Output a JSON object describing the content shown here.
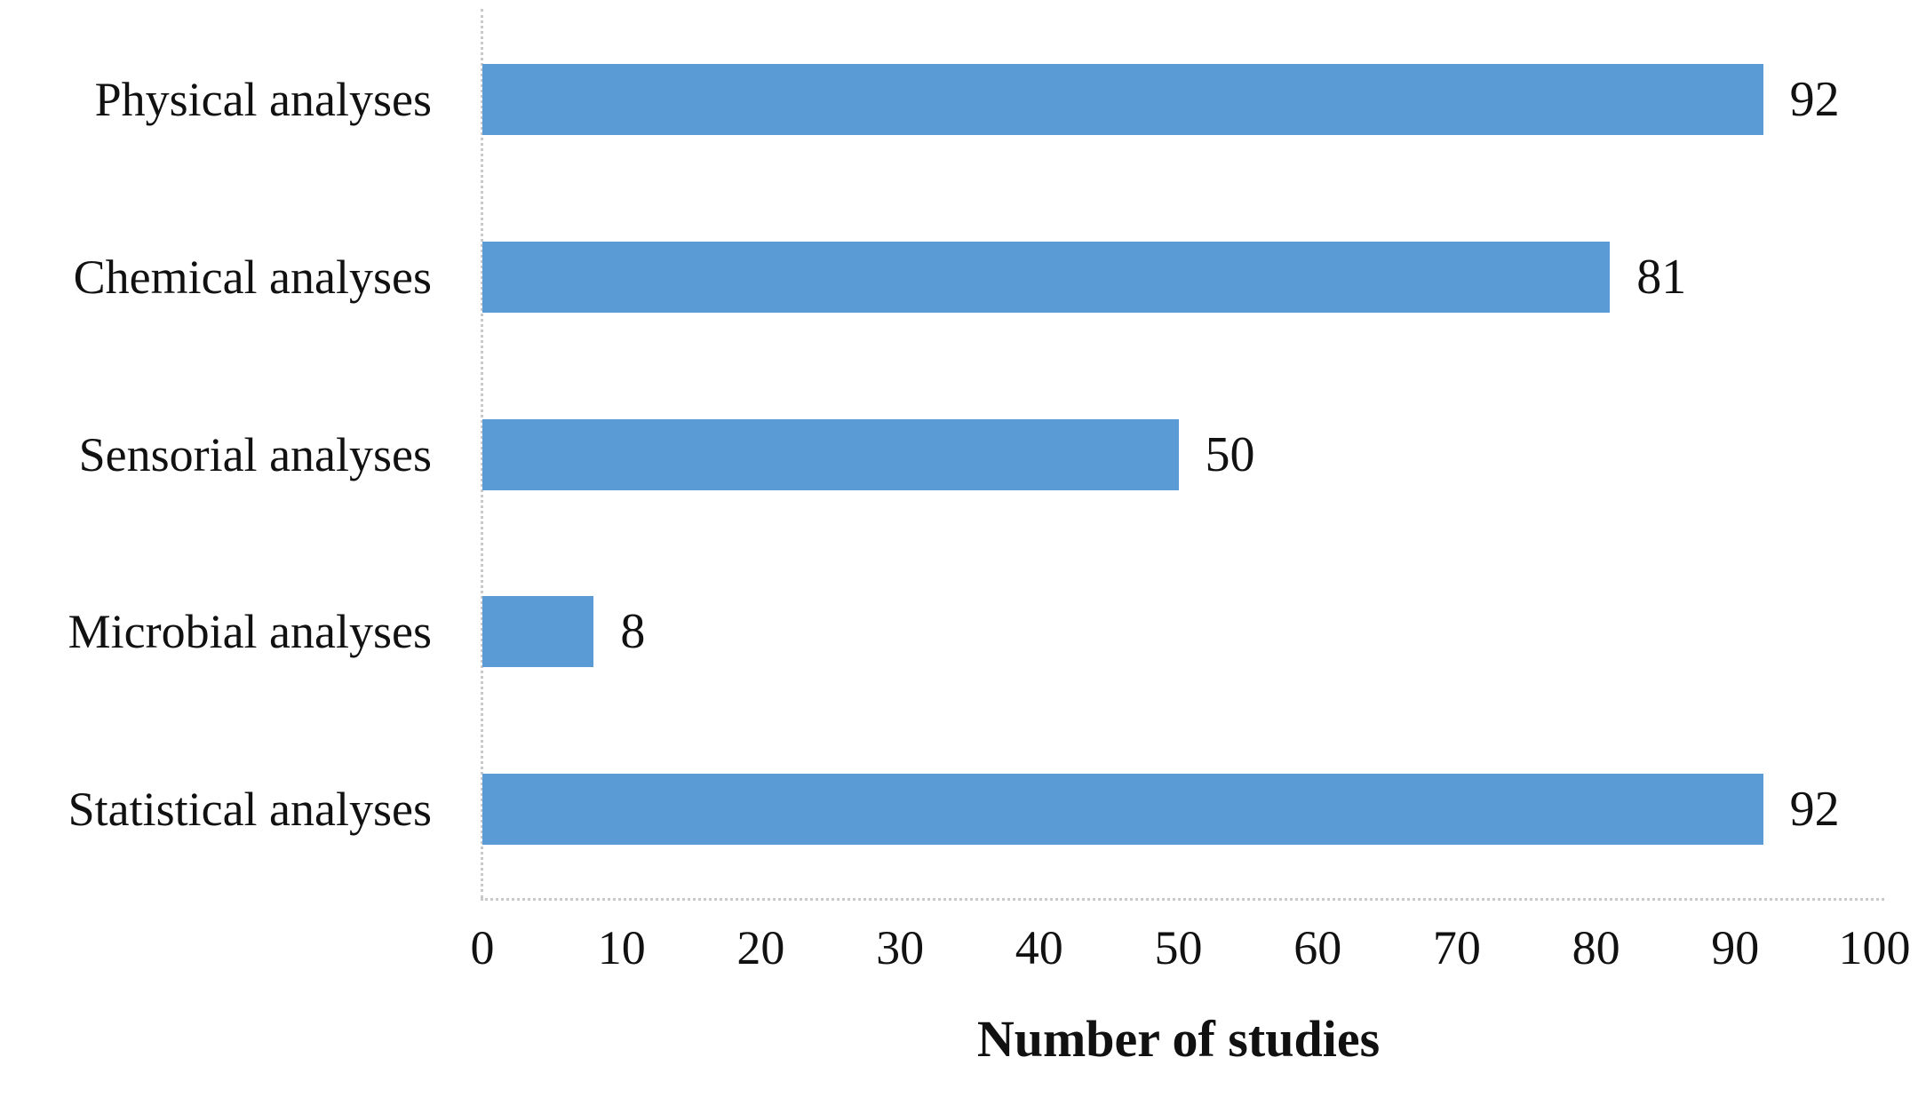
{
  "chart_data": {
    "type": "bar",
    "orientation": "horizontal",
    "title": "",
    "xlabel": "Number of studies",
    "ylabel": "",
    "categories": [
      "Physical analyses",
      "Chemical analyses",
      "Sensorial analyses",
      "Microbial analyses",
      "Statistical analyses"
    ],
    "values": [
      92,
      81,
      50,
      8,
      92
    ],
    "value_labels": [
      "92",
      "81",
      "50",
      "8",
      "92"
    ],
    "xlim": [
      0,
      100
    ],
    "xticks": [
      0,
      10,
      20,
      30,
      40,
      50,
      60,
      70,
      80,
      90,
      100
    ],
    "grid": false,
    "legend_position": "none",
    "colors": {
      "bar": "#5B9BD5",
      "axis_line": "#c9c9c9",
      "text": "#111111",
      "background": "#ffffff"
    }
  }
}
